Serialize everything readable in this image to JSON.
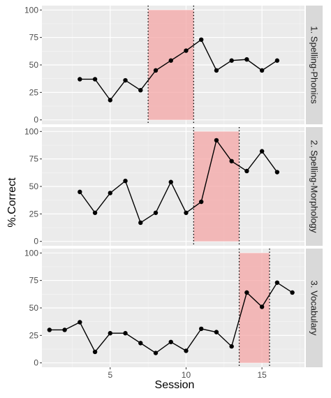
{
  "chart_data": {
    "type": "line",
    "xlabel": "Session",
    "ylabel": "%.Correct",
    "xlim": [
      0.5,
      17.8
    ],
    "ylim": [
      -4,
      104
    ],
    "x_ticks": [
      5,
      10,
      15
    ],
    "y_ticks": [
      0,
      25,
      50,
      75,
      100
    ],
    "y_tick_labels": [
      "0",
      "25",
      "50",
      "75",
      "100"
    ],
    "grid": true,
    "colors": {
      "panel_bg": "#ebebeb",
      "grid_major": "#ffffff",
      "strip_bg": "#d9d9d9",
      "intervention_fill": "#f4a6a6",
      "line": "#000000"
    },
    "panels": [
      {
        "strip": "1. Spelling-Phonics",
        "intervention_x": [
          7.5,
          10.5
        ],
        "points": [
          {
            "x": 3,
            "y": 37
          },
          {
            "x": 4,
            "y": 37
          },
          {
            "x": 5,
            "y": 18
          },
          {
            "x": 6,
            "y": 36
          },
          {
            "x": 7,
            "y": 27
          },
          {
            "x": 8,
            "y": 45
          },
          {
            "x": 9,
            "y": 54
          },
          {
            "x": 10,
            "y": 63
          },
          {
            "x": 11,
            "y": 73
          },
          {
            "x": 12,
            "y": 45
          },
          {
            "x": 13,
            "y": 54
          },
          {
            "x": 14,
            "y": 55
          },
          {
            "x": 15,
            "y": 45
          },
          {
            "x": 16,
            "y": 54
          }
        ]
      },
      {
        "strip": "2. Spelling-Morphology",
        "intervention_x": [
          10.5,
          13.5
        ],
        "points": [
          {
            "x": 3,
            "y": 45
          },
          {
            "x": 4,
            "y": 26
          },
          {
            "x": 5,
            "y": 44
          },
          {
            "x": 6,
            "y": 55
          },
          {
            "x": 7,
            "y": 17
          },
          {
            "x": 8,
            "y": 26
          },
          {
            "x": 9,
            "y": 54
          },
          {
            "x": 10,
            "y": 26
          },
          {
            "x": 11,
            "y": 36
          },
          {
            "x": 12,
            "y": 92
          },
          {
            "x": 13,
            "y": 73
          },
          {
            "x": 14,
            "y": 64
          },
          {
            "x": 15,
            "y": 82
          },
          {
            "x": 16,
            "y": 63
          }
        ]
      },
      {
        "strip": "3. Vocabulary",
        "intervention_x": [
          13.5,
          15.5
        ],
        "points": [
          {
            "x": 1,
            "y": 30
          },
          {
            "x": 2,
            "y": 30
          },
          {
            "x": 3,
            "y": 37
          },
          {
            "x": 4,
            "y": 10
          },
          {
            "x": 5,
            "y": 27
          },
          {
            "x": 6,
            "y": 27
          },
          {
            "x": 7,
            "y": 18
          },
          {
            "x": 8,
            "y": 9
          },
          {
            "x": 9,
            "y": 19
          },
          {
            "x": 10,
            "y": 11
          },
          {
            "x": 11,
            "y": 31
          },
          {
            "x": 12,
            "y": 28
          },
          {
            "x": 13,
            "y": 15
          },
          {
            "x": 14,
            "y": 64
          },
          {
            "x": 15,
            "y": 51
          },
          {
            "x": 16,
            "y": 73
          },
          {
            "x": 17,
            "y": 64
          }
        ]
      }
    ]
  }
}
